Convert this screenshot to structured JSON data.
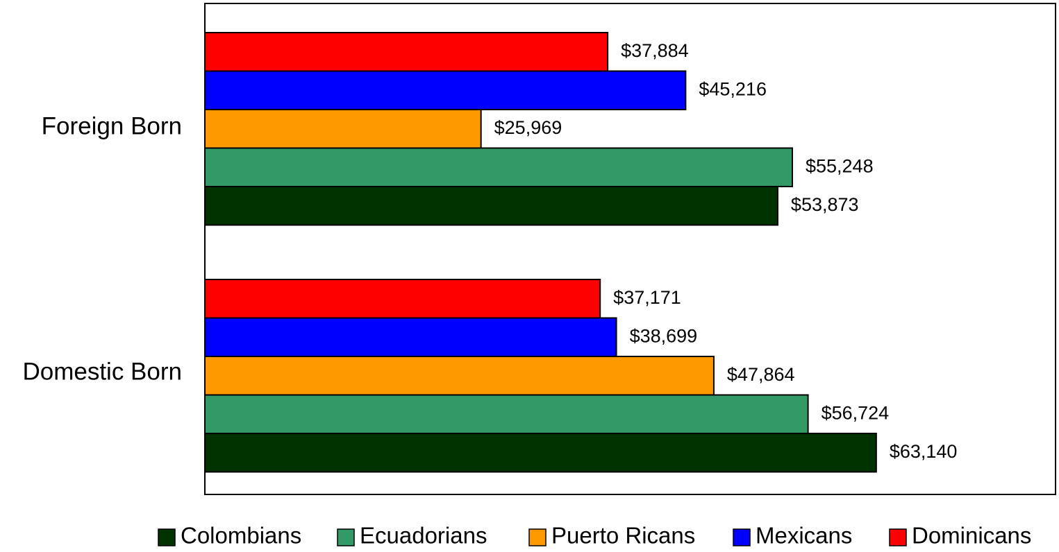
{
  "chart_data": {
    "type": "bar",
    "orientation": "horizontal",
    "categories": [
      "Foreign Born",
      "Domestic Born"
    ],
    "series": [
      {
        "name": "Colombians",
        "color": "#003300",
        "values": [
          53873,
          63140
        ],
        "labels": [
          "$53,873",
          "$63,140"
        ]
      },
      {
        "name": "Ecuadorians",
        "color": "#339966",
        "values": [
          55248,
          56724
        ],
        "labels": [
          "$55,248",
          "$56,724"
        ]
      },
      {
        "name": "Puerto Ricans",
        "color": "#FF9900",
        "values": [
          25969,
          47864
        ],
        "labels": [
          "$25,969",
          "$47,864"
        ]
      },
      {
        "name": "Mexicans",
        "color": "#0000FF",
        "values": [
          45216,
          38699
        ],
        "labels": [
          "$45,216",
          "$38,699"
        ]
      },
      {
        "name": "Dominicans",
        "color": "#FF0000",
        "values": [
          37884,
          37171
        ],
        "labels": [
          "$37,884",
          "$37,171"
        ]
      }
    ],
    "xlim": [
      0,
      80000
    ],
    "grid": false,
    "legend": "bottom"
  }
}
